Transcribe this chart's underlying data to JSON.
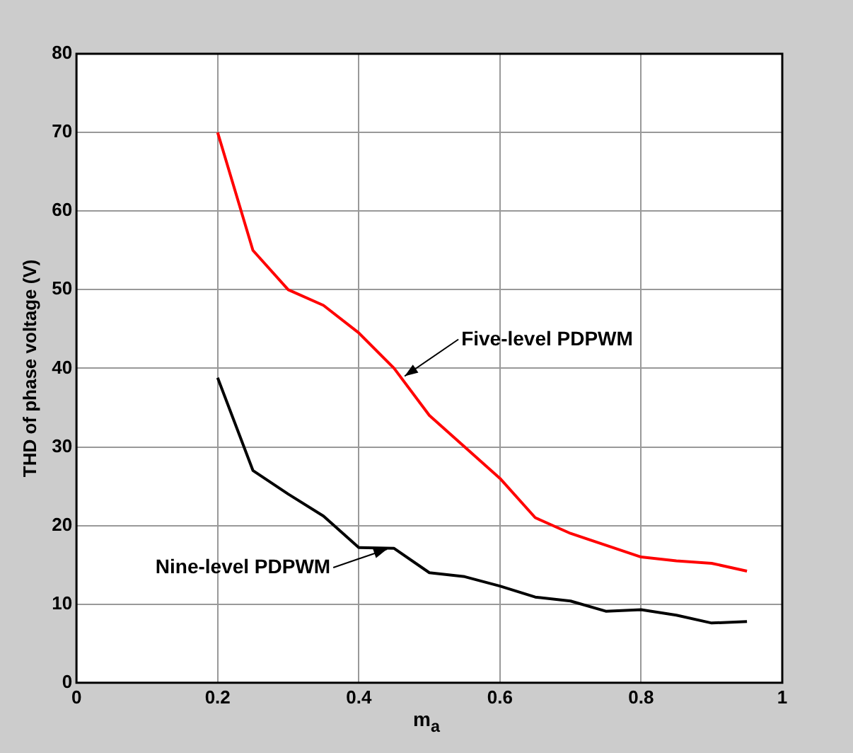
{
  "chart_data": {
    "type": "line",
    "xlabel": "m$_{a}$",
    "ylabel": "THD of phase voltage (V)",
    "x": [
      0.2,
      0.25,
      0.3,
      0.35,
      0.4,
      0.45,
      0.5,
      0.55,
      0.6,
      0.65,
      0.7,
      0.75,
      0.8,
      0.85,
      0.9,
      0.95
    ],
    "series": [
      {
        "color": "#ff0000",
        "values": [
          70,
          55,
          50,
          48,
          44.5,
          40,
          34,
          30,
          26,
          21,
          19,
          17.5,
          16,
          15.5,
          15.2,
          14.2
        ]
      },
      {
        "color": "#000000",
        "values": [
          38.8,
          27,
          24,
          21.2,
          17.2,
          17.1,
          14,
          13.5,
          12.3,
          10.9,
          10.4,
          9.1,
          9.3,
          8.6,
          7.6,
          7.8
        ]
      }
    ],
    "xlim": [
      0,
      1
    ],
    "xticks": [
      0,
      0.2,
      0.4,
      0.6,
      0.8,
      1
    ],
    "ylim": [
      0,
      80
    ],
    "yticks": [
      0,
      10,
      20,
      30,
      40,
      50,
      60,
      70,
      80
    ],
    "grid": true,
    "legend": false,
    "marker": "none",
    "line_style": "solid",
    "annotations": [
      {
        "text": "Five-level PDPWM",
        "x": 0.465,
        "y": 39
      },
      {
        "text": "Nine-level PDPWM",
        "x": 0.44,
        "y": 17
      }
    ]
  }
}
